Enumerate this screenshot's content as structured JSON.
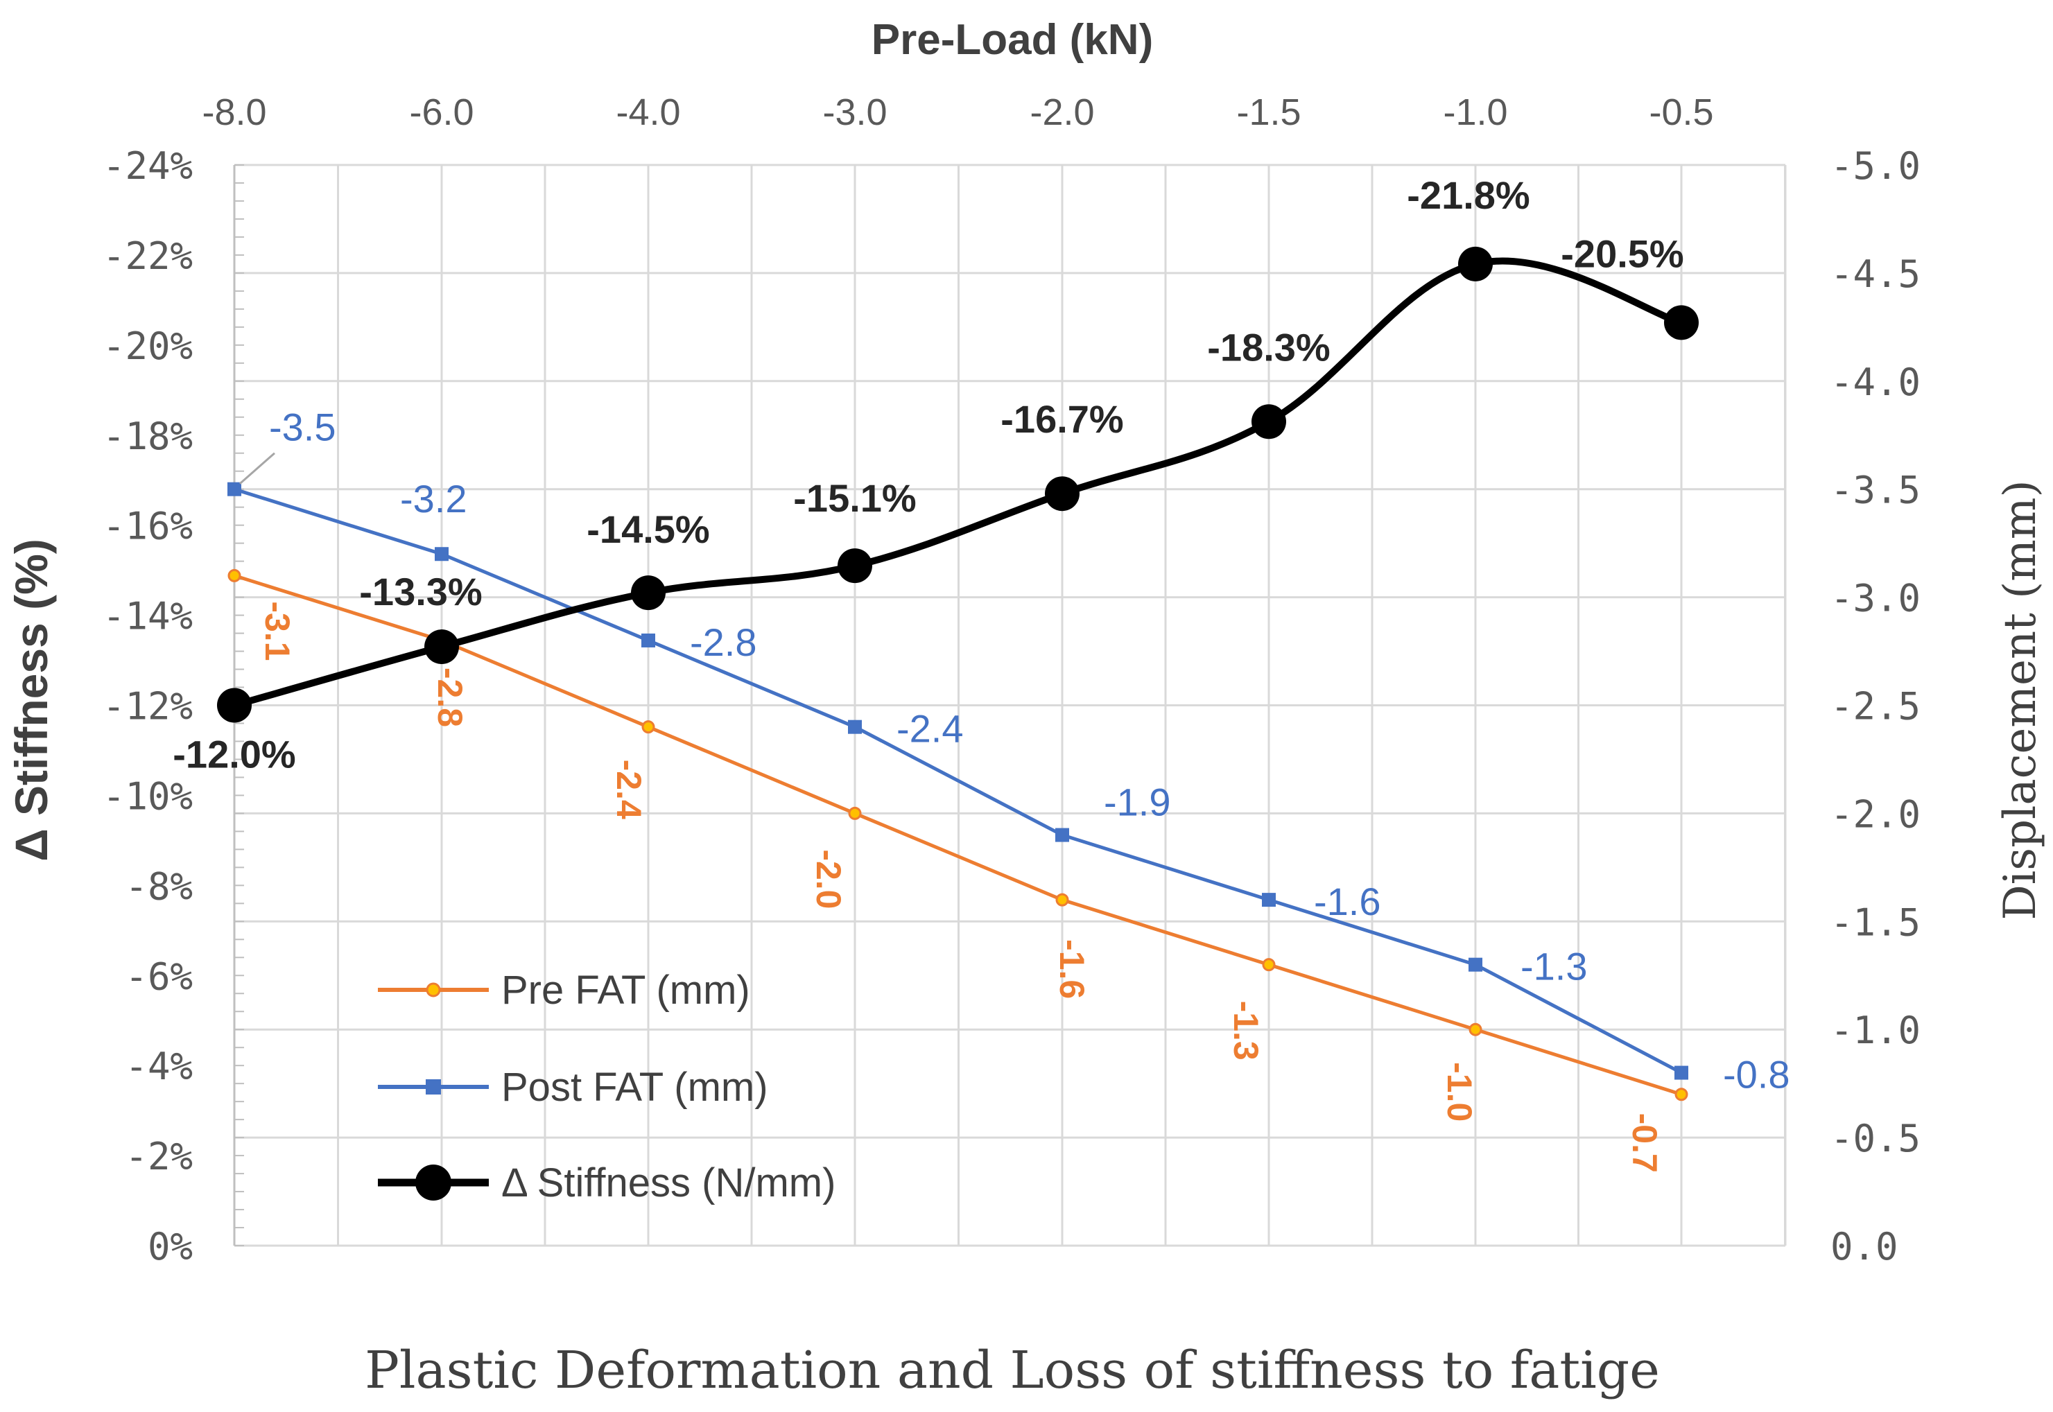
{
  "chart_data": {
    "type": "line",
    "title": "Plastic Deformation and Loss of stiffness to fatige",
    "xlabel": "Pre-Load (kN)",
    "ylabel_left": "Δ Stiffness (%)",
    "ylabel_right": "Displacement (mm)",
    "categories": [
      "-8.0",
      "-6.0",
      "-4.0",
      "-3.0",
      "-2.0",
      "-1.5",
      "-1.0",
      "-0.5"
    ],
    "left_axis": {
      "range": [
        0,
        -24
      ],
      "ticks": [
        "0%",
        "-2%",
        "-4%",
        "-6%",
        "-8%",
        "-10%",
        "-12%",
        "-14%",
        "-16%",
        "-18%",
        "-20%",
        "-22%",
        "-24%"
      ]
    },
    "right_axis": {
      "range": [
        0,
        -5
      ],
      "ticks": [
        "0.0",
        "-0.5",
        "-1.0",
        "-1.5",
        "-2.0",
        "-2.5",
        "-3.0",
        "-3.5",
        "-4.0",
        "-4.5",
        "-5.0"
      ]
    },
    "grid": true,
    "legend_position": "bottom-left",
    "series": [
      {
        "name": "Pre FAT (mm)",
        "axis": "right",
        "color": "#ED7D31",
        "values": [
          -3.1,
          -2.8,
          -2.4,
          -2.0,
          -1.6,
          -1.3,
          -1.0,
          -0.7
        ],
        "labels": [
          "-3.1",
          "-2.8",
          "-2.4",
          "-2.0",
          "-1.6",
          "-1.3",
          "-1.0",
          "-0.7"
        ]
      },
      {
        "name": "Post FAT (mm)",
        "axis": "right",
        "color": "#4472C4",
        "values": [
          -3.5,
          -3.2,
          -2.8,
          -2.4,
          -1.9,
          -1.6,
          -1.3,
          -0.8
        ],
        "labels": [
          "-3.5",
          "-3.2",
          "-2.8",
          "-2.4",
          "-1.9",
          "-1.6",
          "-1.3",
          "-0.8"
        ]
      },
      {
        "name": "Δ Stiffness (N/mm)",
        "axis": "left",
        "color": "#000000",
        "values": [
          -12.0,
          -13.3,
          -14.5,
          -15.1,
          -16.7,
          -18.3,
          -21.8,
          -20.5
        ],
        "labels": [
          "-12.0%",
          "-13.3%",
          "-14.5%",
          "-15.1%",
          "-16.7%",
          "-18.3%",
          "-21.8%",
          "-20.5%"
        ]
      }
    ]
  }
}
